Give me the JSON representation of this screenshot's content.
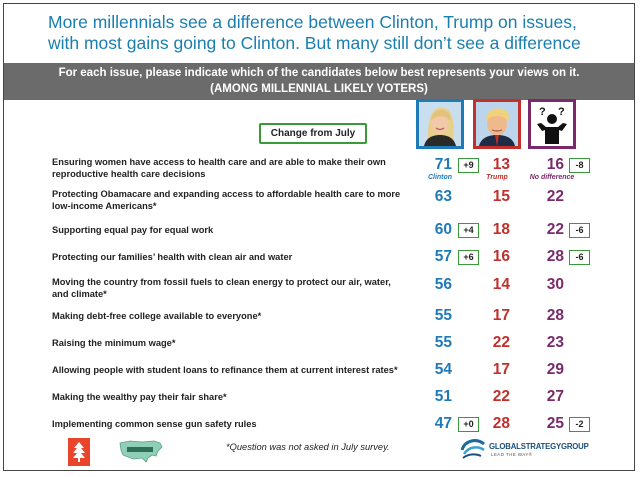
{
  "title": "More millennials see a difference between Clinton, Trump on issues, with most gains going to Clinton. But many still don’t see a difference",
  "banner": {
    "line1": "For each issue, please indicate which of the candidates below best represents your views on it.",
    "line2": "(AMONG MILLENNIAL LIKELY VOTERS)"
  },
  "change_label": "Change from July",
  "colors": {
    "clinton": "#1f7ab8",
    "trump": "#c0302c",
    "no_difference": "#7a2a6b",
    "change_border": "#3a9a3a",
    "title": "#1a7fb0",
    "banner_bg": "#6b6b6b"
  },
  "chart_data": {
    "type": "table",
    "title": "More millennials see a difference between Clinton, Trump on issues, with most gains going to Clinton. But many still don’t see a difference",
    "subtitle": "For each issue, please indicate which of the candidates below best represents your views on it. (AMONG MILLENNIAL LIKELY VOTERS)",
    "columns": [
      "Clinton",
      "Trump",
      "No difference"
    ],
    "rows": [
      {
        "issue": "Ensuring women have access to health care and are able to make their own reproductive health care decisions",
        "clinton": 71,
        "trump": 13,
        "no_difference": 16,
        "clinton_change": "+9",
        "no_difference_change": "-8"
      },
      {
        "issue": "Protecting Obamacare and expanding access to affordable health care to more low-income Americans*",
        "clinton": 63,
        "trump": 15,
        "no_difference": 22,
        "clinton_change": null,
        "no_difference_change": null
      },
      {
        "issue": "Supporting equal pay for equal work",
        "clinton": 60,
        "trump": 18,
        "no_difference": 22,
        "clinton_change": "+4",
        "no_difference_change": "-6"
      },
      {
        "issue": "Protecting our families’ health with clean air and water",
        "clinton": 57,
        "trump": 16,
        "no_difference": 28,
        "clinton_change": "+6",
        "no_difference_change": "-6"
      },
      {
        "issue": "Moving the country from fossil fuels to clean energy to protect our air, water, and climate*",
        "clinton": 56,
        "trump": 14,
        "no_difference": 30,
        "clinton_change": null,
        "no_difference_change": null
      },
      {
        "issue": "Making debt-free college available to everyone*",
        "clinton": 55,
        "trump": 17,
        "no_difference": 28,
        "clinton_change": null,
        "no_difference_change": null
      },
      {
        "issue": "Raising the minimum wage*",
        "clinton": 55,
        "trump": 22,
        "no_difference": 23,
        "clinton_change": null,
        "no_difference_change": null
      },
      {
        "issue": "Allowing people with student loans to refinance them at current interest rates*",
        "clinton": 54,
        "trump": 17,
        "no_difference": 29,
        "clinton_change": null,
        "no_difference_change": null
      },
      {
        "issue": "Making the wealthy pay their fair share*",
        "clinton": 51,
        "trump": 22,
        "no_difference": 27,
        "clinton_change": null,
        "no_difference_change": null
      },
      {
        "issue": "Implementing common sense gun safety rules",
        "clinton": 47,
        "trump": 28,
        "no_difference": 25,
        "clinton_change": "+0",
        "no_difference_change": "-2"
      }
    ]
  },
  "footnote": "*Question was not asked in July survey.",
  "logo": {
    "name": "GLOBALSTRATEGYGROUP",
    "tagline": "LEAD THE WAY®"
  },
  "icons": {
    "left_logo": "flame-logo-icon",
    "map": "us-map-icon",
    "gsg": "globe-swirl-icon",
    "no_difference": "shrug-silhouette-icon"
  }
}
